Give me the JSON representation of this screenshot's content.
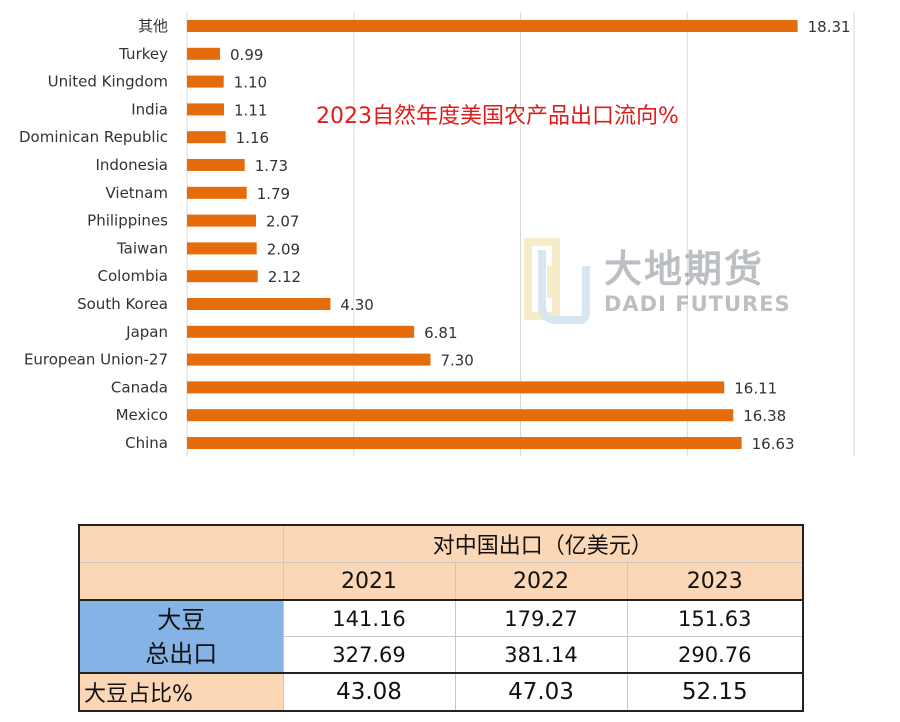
{
  "chart_data": {
    "type": "bar",
    "orientation": "horizontal",
    "title": "2023自然年度美国农产品出口流向%",
    "categories": [
      "其他",
      "Turkey",
      "United Kingdom",
      "India",
      "Dominican Republic",
      "Indonesia",
      "Vietnam",
      "Philippines",
      "Taiwan",
      "Colombia",
      "South Korea",
      "Japan",
      "European Union-27",
      "Canada",
      "Mexico",
      "China"
    ],
    "values": [
      18.31,
      0.99,
      1.1,
      1.11,
      1.16,
      1.73,
      1.79,
      2.07,
      2.09,
      2.12,
      4.3,
      6.81,
      7.3,
      16.11,
      16.38,
      16.63
    ],
    "value_labels": [
      "18.31",
      "0.99",
      "1.10",
      "1.11",
      "1.16",
      "1.73",
      "1.79",
      "2.07",
      "2.09",
      "2.12",
      "4.30",
      "6.81",
      "7.30",
      "16.11",
      "16.38",
      "16.63"
    ],
    "xlim": [
      0,
      20
    ],
    "grid": true,
    "bar_color": "#e46c0a",
    "title_color": "#e01b1b"
  },
  "watermark": {
    "cn": "大地期货",
    "en": "DADI FUTURES"
  },
  "table": {
    "header": "对中国出口（亿美元）",
    "years": [
      "2021",
      "2022",
      "2023"
    ],
    "soy_label": "大豆",
    "total_label": "总出口",
    "ratio_label": "大豆占比%",
    "soy": [
      "141.16",
      "179.27",
      "151.63"
    ],
    "total": [
      "327.69",
      "381.14",
      "290.76"
    ],
    "ratio": [
      "43.08",
      "47.03",
      "52.15"
    ],
    "colors": {
      "peach": "#fbd7b6",
      "blue": "#86b3e6"
    }
  }
}
